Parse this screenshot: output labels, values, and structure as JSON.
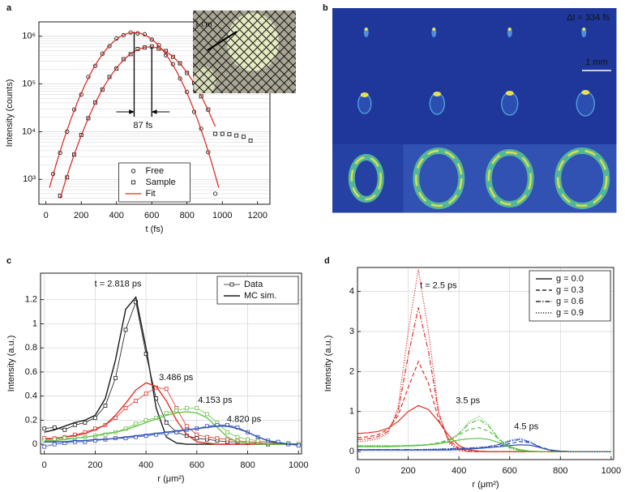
{
  "chart_data": [
    {
      "panel": "a",
      "type": "scatter",
      "log_y": true,
      "xlabel": "t (fs)",
      "ylabel": "Intensity (counts)",
      "xlim": [
        -40,
        1270
      ],
      "ylim": [
        300,
        2000000
      ],
      "xticks": [
        0,
        200,
        400,
        600,
        800,
        1000,
        1200
      ],
      "yticks": [
        {
          "value": 1000,
          "label": "10³"
        },
        {
          "value": 10000,
          "label": "10⁴"
        },
        {
          "value": 100000,
          "label": "10⁵"
        },
        {
          "value": 1000000,
          "label": "10⁶"
        }
      ],
      "grid": "y",
      "legend": "lower center",
      "annotation": "87 fs",
      "inset_label": "1 cm",
      "series": [
        {
          "name": "Free",
          "marker": "circle",
          "color": "#000000",
          "x": [
            40,
            80,
            120,
            160,
            200,
            240,
            280,
            320,
            360,
            400,
            440,
            480,
            520,
            560,
            600,
            640,
            680,
            720,
            760,
            800,
            840,
            880,
            920,
            960
          ],
          "values": [
            1300,
            3600,
            10000,
            29000,
            60000,
            140000,
            240000,
            430000,
            620000,
            900000,
            1050000,
            1200000,
            1150000,
            1100000,
            850000,
            650000,
            400000,
            260000,
            130000,
            68000,
            26000,
            11500,
            3700,
            500
          ]
        },
        {
          "name": "Sample",
          "marker": "square",
          "color": "#000000",
          "x": [
            80,
            120,
            160,
            200,
            240,
            280,
            320,
            360,
            400,
            440,
            480,
            520,
            560,
            600,
            640,
            680,
            720,
            760,
            800,
            840,
            880,
            920,
            960,
            1000,
            1040,
            1080,
            1120,
            1160
          ],
          "values": [
            450,
            1100,
            3300,
            8500,
            19000,
            41000,
            76000,
            140000,
            210000,
            330000,
            420000,
            540000,
            580000,
            610000,
            550000,
            490000,
            370000,
            270000,
            170000,
            105000,
            55000,
            29000,
            9000,
            9000,
            8800,
            8300,
            7800,
            6500
          ]
        },
        {
          "name": "Fit",
          "color": "#d9342b",
          "curves": [
            {
              "x": [
                20,
                60,
                100,
                140,
                180,
                220,
                260,
                300,
                340,
                380,
                420,
                460,
                500,
                540,
                580,
                620,
                660,
                700,
                740,
                780,
                820,
                860,
                900,
                940,
                980
              ],
              "values": [
                667,
                2210,
                6590,
                17700,
                43000,
                93700,
                185000,
                327000,
                522000,
                752000,
                977000,
                1140000,
                1202000,
                1140000,
                977000,
                752000,
                522000,
                327000,
                185000,
                93700,
                43000,
                17700,
                6590,
                2210,
                667
              ]
            },
            {
              "x": [
                80,
                120,
                160,
                200,
                240,
                280,
                320,
                360,
                400,
                440,
                480,
                520,
                560,
                600,
                640,
                680,
                720,
                760,
                800,
                840,
                880,
                920,
                960
              ],
              "values": [
                398,
                1200,
                3310,
                8320,
                19100,
                40300,
                77400,
                136000,
                218000,
                320000,
                429000,
                525000,
                587000,
                601000,
                561000,
                480000,
                374000,
                267000,
                174000,
                104000,
                56500,
                28100,
                12800
              ]
            }
          ]
        }
      ]
    },
    {
      "panel": "b",
      "type": "image",
      "annotation": "Δt = 334 fs",
      "scale_bar": "1 mm"
    },
    {
      "panel": "c",
      "type": "line",
      "xlabel": "r (μm²)",
      "ylabel": "Intensity (a.u.)",
      "xlim": [
        -15,
        1012
      ],
      "ylim": [
        -0.08,
        1.42
      ],
      "xticks": [
        0,
        200,
        400,
        600,
        800,
        1000
      ],
      "yticks": [
        0,
        0.2,
        0.4,
        0.6,
        0.8,
        1,
        1.2
      ],
      "grid": true,
      "legend": "upper right",
      "legend_entries": [
        "Data",
        "MC sim."
      ],
      "x": [
        0,
        40,
        80,
        120,
        160,
        200,
        240,
        280,
        320,
        360,
        400,
        440,
        480,
        520,
        560,
        600,
        640,
        680,
        720,
        760,
        800,
        840,
        880,
        920,
        960,
        1000
      ],
      "series": [
        {
          "name": "t = 2.818 ps",
          "color": "#1a1a1a",
          "data": [
            0.13,
            0.14,
            0.12,
            0.16,
            0.18,
            0.22,
            0.32,
            0.55,
            0.95,
            1.18,
            0.75,
            0.38,
            0.18,
            0.1,
            0.07,
            0.05,
            0.04,
            0.03,
            0.02,
            0.02,
            0.01,
            0.01,
            0,
            0.01,
            0,
            0
          ],
          "sim": [
            0.1,
            0.12,
            0.15,
            0.18,
            0.2,
            0.24,
            0.38,
            0.7,
            1.12,
            1.22,
            0.8,
            0.3,
            0.06,
            0.01,
            0,
            0,
            0,
            0,
            0,
            0,
            0,
            0,
            0,
            0,
            0,
            0
          ]
        },
        {
          "name": "3.486 ps",
          "color": "#e0302a",
          "data": [
            0.05,
            0.05,
            0.06,
            0.08,
            0.1,
            0.13,
            0.16,
            0.22,
            0.3,
            0.36,
            0.42,
            0.47,
            0.46,
            0.3,
            0.15,
            0.08,
            0.06,
            0.05,
            0.04,
            0.03,
            0.02,
            0.02,
            0.01,
            0.01,
            0,
            0
          ],
          "sim": [
            0.04,
            0.05,
            0.06,
            0.07,
            0.09,
            0.12,
            0.16,
            0.24,
            0.34,
            0.45,
            0.51,
            0.48,
            0.36,
            0.2,
            0.08,
            0.02,
            0.01,
            0,
            0,
            0,
            0,
            0,
            0,
            0,
            0,
            0
          ]
        },
        {
          "name": "4.153 ps",
          "color": "#6cc24a",
          "data": [
            0.03,
            0.04,
            0.05,
            0.05,
            0.06,
            0.07,
            0.08,
            0.1,
            0.13,
            0.17,
            0.2,
            0.22,
            0.26,
            0.28,
            0.3,
            0.3,
            0.25,
            0.18,
            0.1,
            0.06,
            0.04,
            0.03,
            0.02,
            0.01,
            0.01,
            0
          ],
          "sim": [
            0.03,
            0.03,
            0.04,
            0.05,
            0.06,
            0.07,
            0.09,
            0.1,
            0.12,
            0.15,
            0.18,
            0.21,
            0.24,
            0.26,
            0.27,
            0.26,
            0.22,
            0.14,
            0.06,
            0.02,
            0.01,
            0,
            0,
            0,
            0,
            0
          ]
        },
        {
          "name": "4.820 ps",
          "color": "#2f4fb5",
          "data": [
            -0.02,
            0,
            0.01,
            0.02,
            0.02,
            0.03,
            0.04,
            0.05,
            0.05,
            0.06,
            0.07,
            0.08,
            0.09,
            0.1,
            0.12,
            0.13,
            0.15,
            0.16,
            0.16,
            0.14,
            0.1,
            0.06,
            0.03,
            0.02,
            0,
            -0.01
          ],
          "sim": [
            0.02,
            0.02,
            0.02,
            0.03,
            0.03,
            0.04,
            0.04,
            0.05,
            0.06,
            0.07,
            0.08,
            0.09,
            0.1,
            0.11,
            0.12,
            0.13,
            0.14,
            0.15,
            0.15,
            0.13,
            0.1,
            0.06,
            0.03,
            0.01,
            0,
            0
          ]
        }
      ]
    },
    {
      "panel": "d",
      "type": "curves",
      "xlabel": "r (μm²)",
      "ylabel": "Intensity (a.u.)",
      "xlim": [
        0,
        1010
      ],
      "ylim": [
        -0.2,
        4.6
      ],
      "xticks": [
        0,
        200,
        400,
        600,
        800,
        1000
      ],
      "yticks": [
        0,
        1,
        2,
        3,
        4
      ],
      "grid": true,
      "legend": "upper right",
      "x": [
        0,
        40,
        80,
        120,
        160,
        200,
        240,
        280,
        320,
        360,
        400,
        440,
        480,
        520,
        560,
        600,
        640,
        680,
        720,
        760,
        800,
        840,
        880,
        920,
        960,
        1000
      ],
      "times": [
        {
          "label": "t = 2.5 ps",
          "color": "#e0302a"
        },
        {
          "label": "3.5 ps",
          "color": "#5cbf46"
        },
        {
          "label": "4.5 ps",
          "color": "#3050b0"
        }
      ],
      "series": [
        {
          "name": "g = 0.0",
          "dash": "solid",
          "curves": [
            [
              0.45,
              0.47,
              0.5,
              0.58,
              0.75,
              1.0,
              1.15,
              1.05,
              0.75,
              0.4,
              0.15,
              0.04,
              0.01,
              0,
              0,
              0,
              0,
              0,
              0,
              0,
              0,
              0,
              0,
              0,
              0,
              0
            ],
            [
              0.12,
              0.12,
              0.12,
              0.12,
              0.13,
              0.14,
              0.15,
              0.17,
              0.2,
              0.24,
              0.29,
              0.32,
              0.33,
              0.3,
              0.22,
              0.12,
              0.05,
              0.01,
              0,
              0,
              0,
              0,
              0,
              0,
              0,
              0
            ],
            [
              0.04,
              0.04,
              0.04,
              0.04,
              0.04,
              0.04,
              0.04,
              0.04,
              0.04,
              0.04,
              0.05,
              0.06,
              0.08,
              0.1,
              0.12,
              0.15,
              0.17,
              0.16,
              0.1,
              0.04,
              0.01,
              0,
              0,
              0,
              0,
              0
            ]
          ]
        },
        {
          "name": "g = 0.3",
          "dash": "dashed",
          "curves": [
            [
              0.35,
              0.37,
              0.42,
              0.55,
              0.9,
              1.6,
              2.25,
              1.7,
              0.8,
              0.3,
              0.08,
              0.01,
              0,
              0,
              0,
              0,
              0,
              0,
              0,
              0,
              0,
              0,
              0,
              0,
              0,
              0
            ],
            [
              0.13,
              0.13,
              0.13,
              0.13,
              0.14,
              0.15,
              0.16,
              0.18,
              0.22,
              0.3,
              0.42,
              0.55,
              0.6,
              0.5,
              0.3,
              0.13,
              0.04,
              0.01,
              0,
              0,
              0,
              0,
              0,
              0,
              0,
              0
            ],
            [
              0.04,
              0.04,
              0.04,
              0.04,
              0.04,
              0.04,
              0.04,
              0.04,
              0.04,
              0.05,
              0.06,
              0.07,
              0.08,
              0.1,
              0.14,
              0.2,
              0.25,
              0.22,
              0.12,
              0.04,
              0.01,
              0,
              0,
              0,
              0,
              0
            ]
          ]
        },
        {
          "name": "g = 0.6",
          "dash": "dashdot",
          "curves": [
            [
              0.3,
              0.32,
              0.37,
              0.5,
              1.0,
              2.4,
              3.6,
              2.5,
              0.95,
              0.25,
              0.05,
              0,
              0,
              0,
              0,
              0,
              0,
              0,
              0,
              0,
              0,
              0,
              0,
              0,
              0,
              0
            ],
            [
              0.14,
              0.14,
              0.14,
              0.14,
              0.14,
              0.15,
              0.16,
              0.17,
              0.2,
              0.27,
              0.45,
              0.7,
              0.8,
              0.62,
              0.3,
              0.1,
              0.03,
              0,
              0,
              0,
              0,
              0,
              0,
              0,
              0,
              0
            ],
            [
              0.05,
              0.05,
              0.05,
              0.05,
              0.05,
              0.05,
              0.05,
              0.05,
              0.06,
              0.07,
              0.08,
              0.09,
              0.1,
              0.13,
              0.18,
              0.26,
              0.3,
              0.24,
              0.1,
              0.03,
              0.01,
              0,
              0,
              0,
              0,
              0
            ]
          ]
        },
        {
          "name": "g = 0.9",
          "dash": "dotted",
          "curves": [
            [
              0.25,
              0.27,
              0.32,
              0.45,
              1.1,
              3.0,
              4.55,
              3.0,
              1.0,
              0.2,
              0.03,
              0,
              0,
              0,
              0,
              0,
              0,
              0,
              0,
              0,
              0,
              0,
              0,
              0,
              0,
              0
            ],
            [
              0.15,
              0.15,
              0.15,
              0.15,
              0.15,
              0.15,
              0.16,
              0.17,
              0.19,
              0.25,
              0.45,
              0.75,
              0.88,
              0.65,
              0.28,
              0.08,
              0.02,
              0,
              0,
              0,
              0,
              0,
              0,
              0,
              0,
              0
            ],
            [
              0.05,
              0.05,
              0.05,
              0.05,
              0.05,
              0.05,
              0.05,
              0.06,
              0.06,
              0.07,
              0.08,
              0.09,
              0.1,
              0.12,
              0.18,
              0.28,
              0.33,
              0.25,
              0.1,
              0.03,
              0.01,
              0,
              0,
              0,
              0,
              0
            ]
          ]
        }
      ]
    }
  ]
}
